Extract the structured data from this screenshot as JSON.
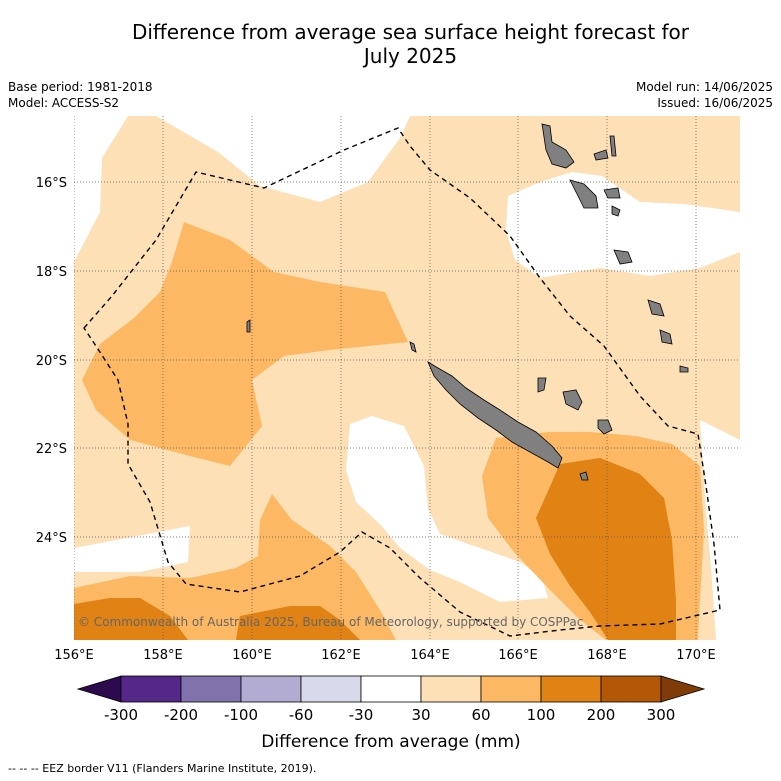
{
  "title": "Difference from average sea surface height forecast for July 2025",
  "title_line1": "Difference from average sea surface height forecast for",
  "title_line2": "July 2025",
  "base_period": "Base period: 1981-2018",
  "model": "Model: ACCESS-S2",
  "model_run": "Model run: 14/06/2025",
  "issued": "Issued: 16/06/2025",
  "copyright": "© Commonwealth of Australia 2025, Bureau of Meteorology, supported by COSPPac",
  "footnote": "--  --  -- EEZ border V11 (Flanders Marine Institute, 2019).",
  "map": {
    "lon_range": [
      156,
      171
    ],
    "lat_range": [
      -26.3,
      -14.5
    ],
    "lon_ticks": [
      "156°E",
      "158°E",
      "160°E",
      "162°E",
      "164°E",
      "166°E",
      "168°E",
      "170°E"
    ],
    "lat_ticks": [
      "16°S",
      "18°S",
      "20°S",
      "22°S",
      "24°S"
    ],
    "land_color": "#808080",
    "border_style": "dashed"
  },
  "colorbar": {
    "label": "Difference from average (mm)",
    "tick_labels": [
      "-300",
      "-200",
      "-100",
      "-60",
      "-30",
      "30",
      "60",
      "100",
      "200",
      "300"
    ],
    "low_extend_color": "#2d0a4e",
    "high_extend_color": "#7f3b08",
    "bin_colors": [
      "#542788",
      "#8073ac",
      "#b2abd2",
      "#d8daeb",
      "#ffffff",
      "#fee0b6",
      "#fdb863",
      "#e08214",
      "#b35806"
    ]
  }
}
